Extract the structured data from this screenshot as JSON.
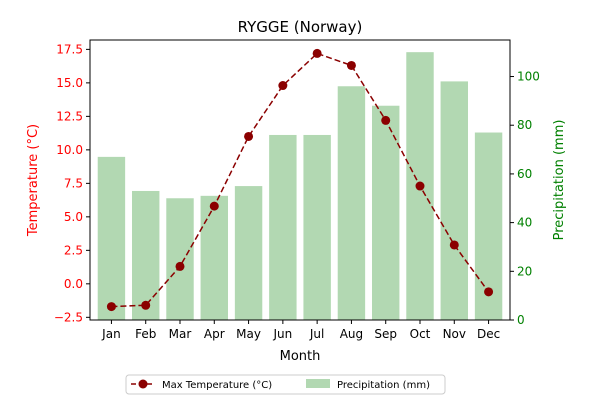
{
  "chart_data": {
    "type": "bar+line",
    "title": "RYGGE (Norway)",
    "xlabel": "Month",
    "ylabel_left": "Temperature (°C)",
    "ylabel_right": "Precipitation (mm)",
    "categories": [
      "Jan",
      "Feb",
      "Mar",
      "Apr",
      "May",
      "Jun",
      "Jul",
      "Aug",
      "Sep",
      "Oct",
      "Nov",
      "Dec"
    ],
    "series": [
      {
        "name": "Max Temperature (°C)",
        "kind": "line",
        "axis": "left",
        "color": "#8b0000",
        "values": [
          -1.7,
          -1.6,
          1.3,
          5.8,
          11.0,
          14.8,
          17.2,
          16.3,
          12.2,
          7.3,
          2.9,
          -0.6
        ]
      },
      {
        "name": "Precipitation (mm)",
        "kind": "bar",
        "axis": "right",
        "color": "#b2d8b2",
        "values": [
          67,
          53,
          50,
          51,
          55,
          76,
          76,
          96,
          88,
          110,
          98,
          77
        ]
      }
    ],
    "ylim_left": [
      -2.7,
      18.2
    ],
    "yticks_left": [
      "−2.5",
      "0.0",
      "2.5",
      "5.0",
      "7.5",
      "10.0",
      "12.5",
      "15.0",
      "17.5"
    ],
    "ylim_right": [
      0,
      115
    ],
    "yticks_right": [
      "0",
      "20",
      "40",
      "60",
      "80",
      "100"
    ],
    "left_axis_color": "#ff0000",
    "right_axis_color": "#008000",
    "legend": {
      "placement": "bottom-center",
      "columns": 2
    },
    "grid": false
  }
}
